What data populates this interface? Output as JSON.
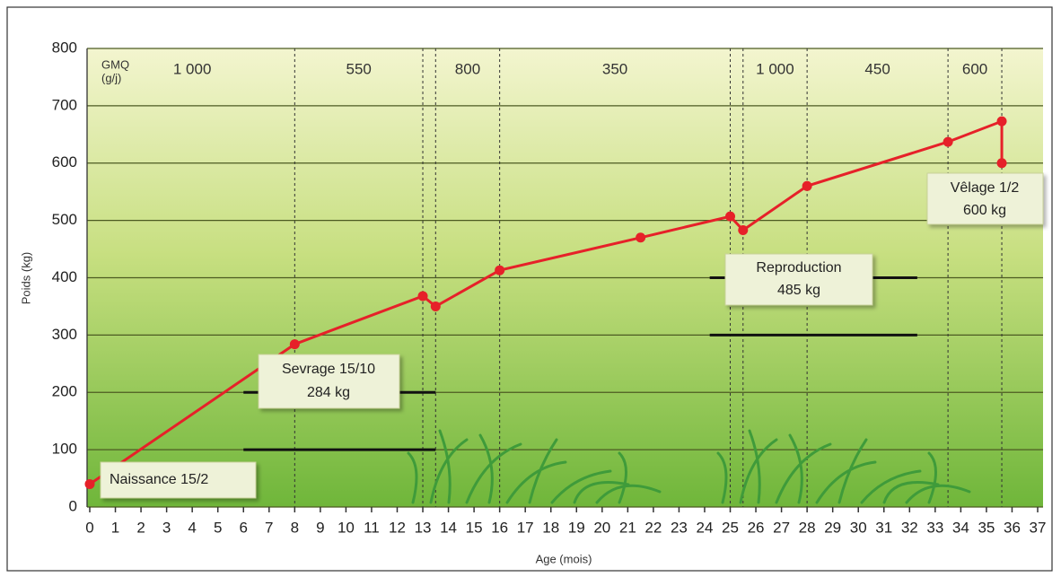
{
  "chart_data": {
    "type": "line",
    "x_label": "Age (mois)",
    "y_label": "Poids (kg)",
    "x": [
      0,
      8,
      13,
      13.5,
      16,
      21.5,
      25,
      25.5,
      28,
      33.5,
      35.6,
      35.6
    ],
    "series": [
      {
        "color": "#e62129",
        "values": [
          40,
          284,
          368,
          350,
          413,
          470,
          507,
          483,
          560,
          637,
          673,
          600
        ]
      }
    ],
    "xlim": [
      0,
      37
    ],
    "xticks": [
      0,
      1,
      2,
      3,
      4,
      5,
      6,
      7,
      8,
      9,
      10,
      11,
      12,
      13,
      14,
      15,
      16,
      17,
      18,
      19,
      20,
      21,
      22,
      23,
      24,
      25,
      26,
      27,
      28,
      29,
      30,
      31,
      32,
      33,
      34,
      35,
      36,
      37
    ],
    "ylim": [
      0,
      800
    ],
    "yticks": [
      0,
      100,
      200,
      300,
      400,
      500,
      600,
      700,
      800
    ],
    "grid": true,
    "gmq_title": [
      "GMQ",
      "(g/j)"
    ],
    "dividers": [
      8,
      13,
      13.5,
      16,
      25,
      25.5,
      28,
      33.5,
      35.6
    ],
    "gmq": [
      {
        "label": "1 000",
        "x": [
          0,
          8
        ]
      },
      {
        "label": "550",
        "x": [
          8,
          13
        ]
      },
      {
        "label": "800",
        "x": [
          13.5,
          16
        ]
      },
      {
        "label": "350",
        "x": [
          16,
          25
        ]
      },
      {
        "label": "1 000",
        "x": [
          25.5,
          28
        ]
      },
      {
        "label": "450",
        "x": [
          28,
          33.5
        ]
      },
      {
        "label": "600",
        "x": [
          33.5,
          35.6
        ]
      }
    ],
    "target_bars": [
      {
        "x": [
          6,
          13.5
        ],
        "y": 100
      },
      {
        "x": [
          6,
          13.5
        ],
        "y": 200
      },
      {
        "x": [
          24.2,
          32.3
        ],
        "y": 300
      },
      {
        "x": [
          24.2,
          32.3
        ],
        "y": 400
      }
    ],
    "annotations": [
      {
        "lines": [
          "Naissance 15/2"
        ]
      },
      {
        "lines": [
          "Sevrage 15/10",
          "284 kg"
        ]
      },
      {
        "lines": [
          "Reproduction",
          "485 kg"
        ]
      },
      {
        "lines": [
          "Vêlage 1/2",
          "600 kg"
        ]
      }
    ]
  }
}
